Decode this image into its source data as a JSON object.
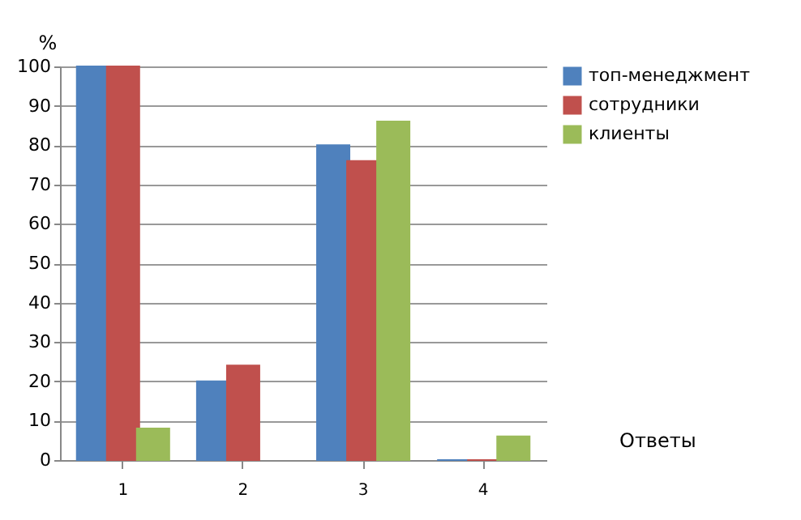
{
  "chart_data": {
    "type": "bar",
    "categories": [
      "1",
      "2",
      "3",
      "4"
    ],
    "ylabel": "%",
    "annotations": [
      "Ответы"
    ],
    "series": [
      {
        "name": "топ-менеджмент",
        "color": "#4f81bd",
        "values": [
          100,
          20,
          80,
          0
        ]
      },
      {
        "name": "сотрудники",
        "color": "#c0504d",
        "values": [
          100,
          24,
          76,
          0
        ]
      },
      {
        "name": "клиенты",
        "color": "#9bbb59",
        "values": [
          8,
          null,
          86,
          6
        ]
      }
    ],
    "ylim": [
      0,
      100
    ],
    "yticks": [
      0,
      10,
      20,
      30,
      40,
      50,
      60,
      70,
      80,
      90,
      100
    ],
    "grid": "y",
    "legend": "right"
  }
}
